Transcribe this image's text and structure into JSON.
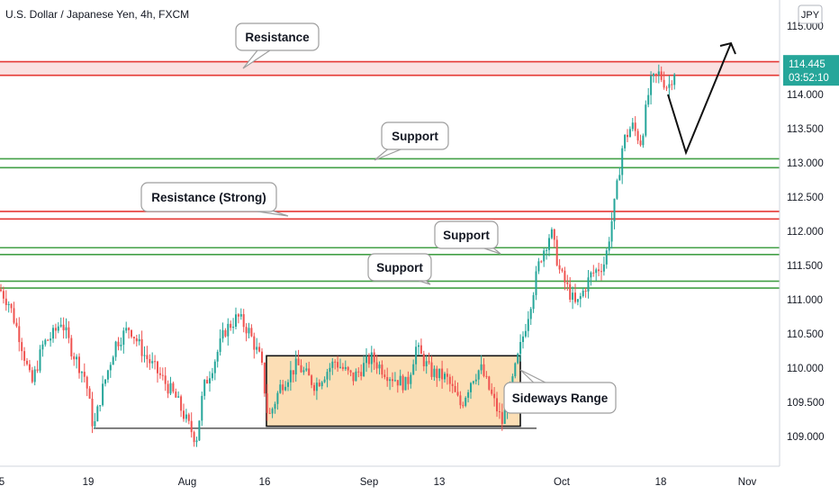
{
  "chart_data": {
    "type": "candlestick",
    "title": "U.S. Dollar / Japanese Yen, 4h, FXCM",
    "currency": "JPY",
    "ylim": [
      108.7,
      115.3
    ],
    "y_ticks": [
      "115.000",
      "114.500",
      "114.000",
      "113.500",
      "113.000",
      "112.500",
      "112.000",
      "111.500",
      "111.000",
      "110.500",
      "110.000",
      "109.500",
      "109.000"
    ],
    "x_ticks": [
      "5",
      "19",
      "Aug",
      "16",
      "Sep",
      "13",
      "Oct",
      "18",
      "Nov"
    ],
    "last_price": "114.445",
    "countdown": "03:52:10",
    "colors": {
      "up": "#26a69a",
      "down": "#ef5350",
      "resistance": "#e53935",
      "support": "#43a047",
      "range_fill": "#fbd8a8"
    },
    "zones": [
      {
        "kind": "resistance",
        "upper": 114.48,
        "lower": 114.28
      },
      {
        "kind": "support",
        "upper": 113.06,
        "lower": 112.93
      },
      {
        "kind": "resistance",
        "upper": 112.29,
        "lower": 112.18
      },
      {
        "kind": "support",
        "upper": 111.76,
        "lower": 111.66
      },
      {
        "kind": "support",
        "upper": 111.27,
        "lower": 111.17
      }
    ],
    "sideways_range": {
      "high": 110.18,
      "low": 109.15,
      "baseline": 109.12
    },
    "annotations": [
      {
        "text": "Resistance",
        "name": "callout-resistance"
      },
      {
        "text": "Support",
        "name": "callout-support-1"
      },
      {
        "text": "Resistance (Strong)",
        "name": "callout-resistance-strong"
      },
      {
        "text": "Support",
        "name": "callout-support-2"
      },
      {
        "text": "Support",
        "name": "callout-support-3"
      },
      {
        "text": "Sideways Range",
        "name": "callout-sideways-range"
      }
    ],
    "price_path": [
      [
        0,
        111.15
      ],
      [
        10,
        110.95
      ],
      [
        22,
        110.45
      ],
      [
        35,
        109.75
      ],
      [
        48,
        110.35
      ],
      [
        60,
        110.5
      ],
      [
        68,
        110.7
      ],
      [
        80,
        110.25
      ],
      [
        95,
        109.85
      ],
      [
        104,
        109.1
      ],
      [
        112,
        109.6
      ],
      [
        128,
        110.35
      ],
      [
        144,
        110.6
      ],
      [
        160,
        110.2
      ],
      [
        180,
        109.85
      ],
      [
        196,
        109.55
      ],
      [
        208,
        109.2
      ],
      [
        218,
        108.95
      ],
      [
        226,
        109.7
      ],
      [
        238,
        110.1
      ],
      [
        250,
        110.55
      ],
      [
        264,
        110.75
      ],
      [
        276,
        110.55
      ],
      [
        290,
        110.1
      ],
      [
        298,
        109.25
      ],
      [
        312,
        109.75
      ],
      [
        330,
        110.05
      ],
      [
        350,
        109.75
      ],
      [
        372,
        110.1
      ],
      [
        392,
        109.85
      ],
      [
        412,
        110.15
      ],
      [
        432,
        109.9
      ],
      [
        452,
        109.75
      ],
      [
        462,
        110.3
      ],
      [
        478,
        109.95
      ],
      [
        496,
        109.85
      ],
      [
        512,
        109.45
      ],
      [
        524,
        109.85
      ],
      [
        534,
        110.0
      ],
      [
        546,
        109.6
      ],
      [
        558,
        109.2
      ],
      [
        570,
        109.85
      ],
      [
        586,
        110.75
      ],
      [
        600,
        111.6
      ],
      [
        612,
        112.0
      ],
      [
        622,
        111.4
      ],
      [
        640,
        110.9
      ],
      [
        656,
        111.35
      ],
      [
        672,
        111.55
      ],
      [
        684,
        112.5
      ],
      [
        692,
        113.3
      ],
      [
        702,
        113.55
      ],
      [
        712,
        113.3
      ],
      [
        722,
        114.15
      ],
      [
        732,
        114.3
      ],
      [
        742,
        114.1
      ],
      [
        752,
        114.445
      ]
    ],
    "projection": [
      [
        742,
        114.0
      ],
      [
        762,
        113.15
      ],
      [
        812,
        114.75
      ]
    ]
  }
}
